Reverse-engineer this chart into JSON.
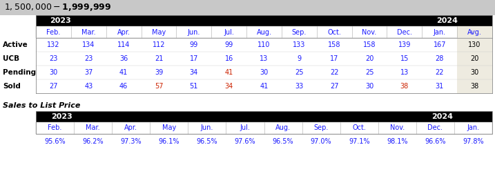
{
  "title": "$1,500,000 - $1,999,999",
  "title_bg": "#c8c8c8",
  "header_bg": "#000000",
  "avg_bg": "#eeebe0",
  "row_labels": [
    "Active",
    "UCB",
    "Pending",
    "Sold"
  ],
  "months": [
    "Feb.",
    "Mar.",
    "Apr.",
    "May",
    "Jun.",
    "Jul.",
    "Aug.",
    "Sep.",
    "Oct.",
    "Nov.",
    "Dec.",
    "Jan.",
    "Avg."
  ],
  "data": [
    [
      132,
      134,
      114,
      112,
      99,
      99,
      110,
      133,
      158,
      158,
      139,
      167,
      130
    ],
    [
      23,
      23,
      36,
      21,
      17,
      16,
      13,
      9,
      17,
      20,
      15,
      28,
      20
    ],
    [
      30,
      37,
      41,
      39,
      34,
      41,
      30,
      25,
      22,
      25,
      13,
      22,
      30
    ],
    [
      27,
      43,
      46,
      57,
      51,
      34,
      41,
      33,
      27,
      30,
      38,
      31,
      38
    ]
  ],
  "text_colors": [
    [
      "#1a1aff",
      "#1a1aff",
      "#1a1aff",
      "#1a1aff",
      "#1a1aff",
      "#1a1aff",
      "#1a1aff",
      "#1a1aff",
      "#1a1aff",
      "#1a1aff",
      "#1a1aff",
      "#1a1aff",
      "#000000"
    ],
    [
      "#1a1aff",
      "#1a1aff",
      "#1a1aff",
      "#1a1aff",
      "#1a1aff",
      "#1a1aff",
      "#1a1aff",
      "#1a1aff",
      "#1a1aff",
      "#1a1aff",
      "#1a1aff",
      "#1a1aff",
      "#000000"
    ],
    [
      "#1a1aff",
      "#1a1aff",
      "#1a1aff",
      "#1a1aff",
      "#1a1aff",
      "#cc2200",
      "#1a1aff",
      "#1a1aff",
      "#1a1aff",
      "#1a1aff",
      "#1a1aff",
      "#1a1aff",
      "#000000"
    ],
    [
      "#1a1aff",
      "#1a1aff",
      "#1a1aff",
      "#cc2200",
      "#1a1aff",
      "#cc2200",
      "#1a1aff",
      "#1a1aff",
      "#1a1aff",
      "#1a1aff",
      "#cc2200",
      "#1a1aff",
      "#000000"
    ]
  ],
  "sales_to_list_label": "Sales to List Price",
  "sales_months": [
    "Feb.",
    "Mar.",
    "Apr.",
    "May",
    "Jun.",
    "Jul.",
    "Aug.",
    "Sep.",
    "Oct.",
    "Nov.",
    "Dec.",
    "Jan."
  ],
  "sales_data": [
    "95.6%",
    "96.2%",
    "97.3%",
    "96.1%",
    "96.5%",
    "97.6%",
    "96.5%",
    "97.0%",
    "97.1%",
    "98.1%",
    "96.6%",
    "97.8%"
  ],
  "sales_text_colors": [
    "#1a1aff",
    "#1a1aff",
    "#1a1aff",
    "#1a1aff",
    "#1a1aff",
    "#1a1aff",
    "#1a1aff",
    "#1a1aff",
    "#1a1aff",
    "#1a1aff",
    "#1a1aff",
    "#1a1aff"
  ]
}
